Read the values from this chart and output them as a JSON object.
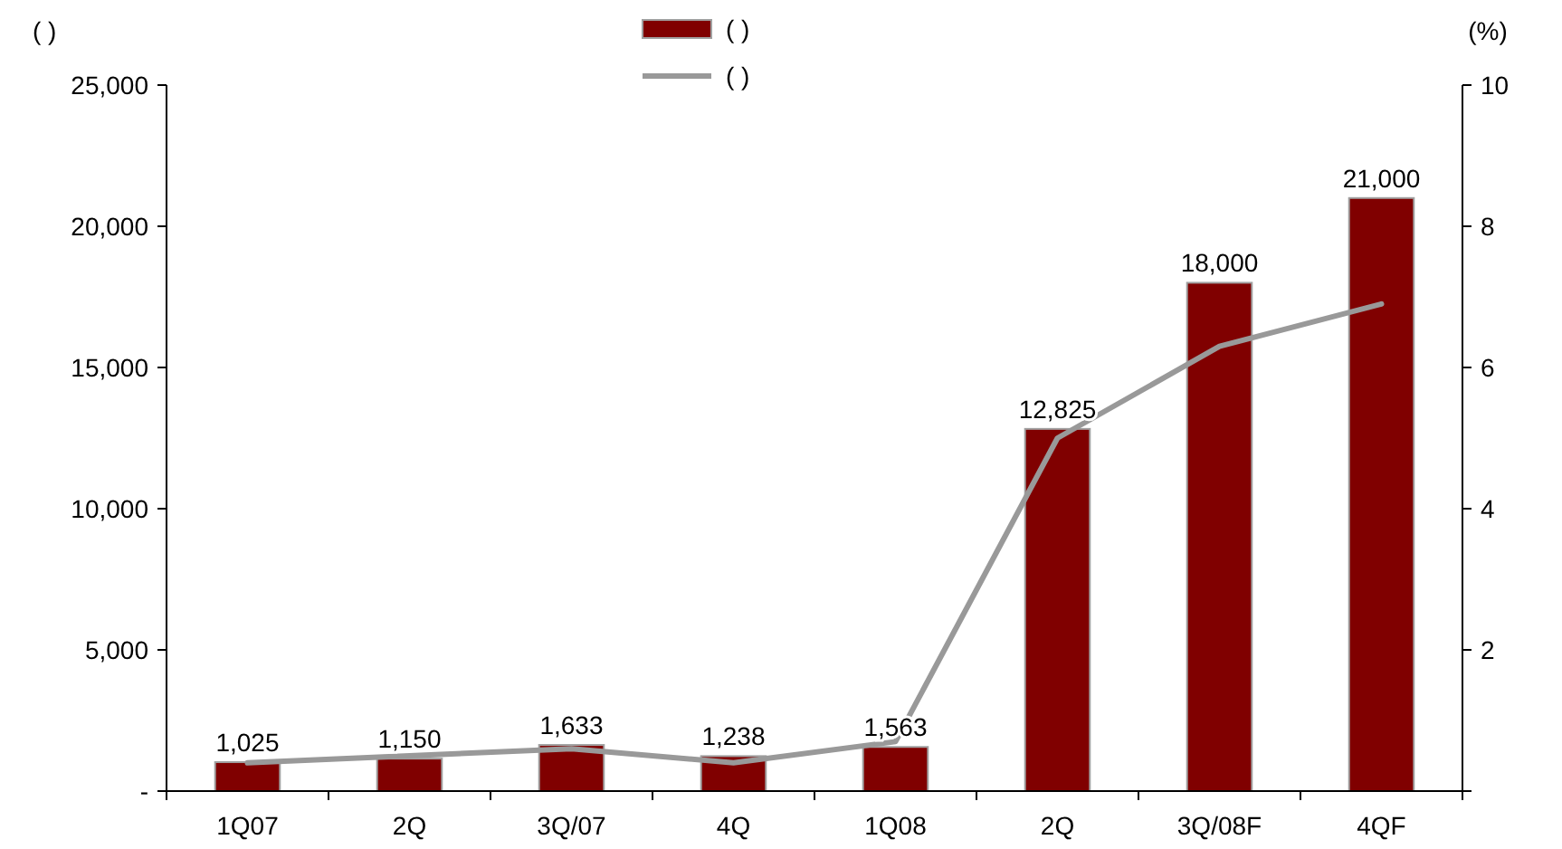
{
  "chart_data": {
    "type": "bar",
    "ylabel": "(     )",
    "y2label": "(%)",
    "categories": [
      "1Q07",
      "2Q",
      "3Q/07",
      "4Q",
      "1Q08",
      "2Q",
      "3Q/08F",
      "4QF"
    ],
    "series": [
      {
        "name": "(     )",
        "color": "#800000",
        "values": [
          1025,
          1150,
          1633,
          1238,
          1563,
          12825,
          18000,
          21000
        ],
        "value_labels": [
          "1,025",
          "1,150",
          "1,633",
          "1,238",
          "1,563",
          "12,825",
          "18,000",
          "21,000"
        ]
      },
      {
        "name": "(     )",
        "type": "line",
        "axis": "y2",
        "color": "#999999",
        "values": [
          0.4,
          0.5,
          0.6,
          0.4,
          0.7,
          5.0,
          6.3,
          6.9
        ]
      }
    ],
    "ylim": [
      0,
      25000
    ],
    "yticks": [
      {
        "value": 0,
        "label": "-"
      },
      {
        "value": 5000,
        "label": "5,000"
      },
      {
        "value": 10000,
        "label": "10,000"
      },
      {
        "value": 15000,
        "label": "15,000"
      },
      {
        "value": 20000,
        "label": "20,000"
      },
      {
        "value": 25000,
        "label": "25,000"
      }
    ],
    "y2lim": [
      0,
      10
    ],
    "y2ticks": [
      {
        "value": 0,
        "label": null
      },
      2,
      4,
      6,
      8,
      10
    ],
    "legend": "top",
    "grid": false
  }
}
